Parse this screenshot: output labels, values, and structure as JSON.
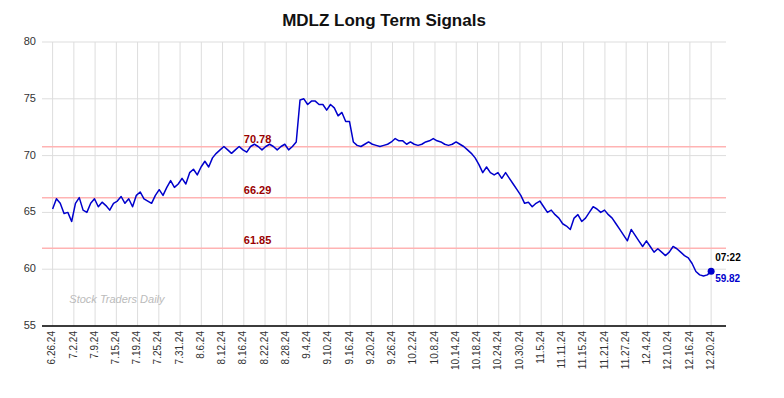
{
  "chart_data": {
    "type": "line",
    "title": "MDLZ Long Term Signals",
    "watermark": "Stock Traders Daily",
    "xlim": [
      -0.5,
      31.7
    ],
    "xticks": [
      {
        "value": 0,
        "label": "6.26.24"
      },
      {
        "value": 1,
        "label": "7.2.24"
      },
      {
        "value": 2,
        "label": "7.9.24"
      },
      {
        "value": 3,
        "label": "7.15.24"
      },
      {
        "value": 4,
        "label": "7.19.24"
      },
      {
        "value": 5,
        "label": "7.25.24"
      },
      {
        "value": 6,
        "label": "7.31.24"
      },
      {
        "value": 7,
        "label": "8.6.24"
      },
      {
        "value": 8,
        "label": "8.12.24"
      },
      {
        "value": 9,
        "label": "8.16.24"
      },
      {
        "value": 10,
        "label": "8.22.24"
      },
      {
        "value": 11,
        "label": "8.28.24"
      },
      {
        "value": 12,
        "label": "9.4.24"
      },
      {
        "value": 13,
        "label": "9.10.24"
      },
      {
        "value": 14,
        "label": "9.16.24"
      },
      {
        "value": 15,
        "label": "9.20.24"
      },
      {
        "value": 16,
        "label": "9.26.24"
      },
      {
        "value": 17,
        "label": "10.2.24"
      },
      {
        "value": 18,
        "label": "10.8.24"
      },
      {
        "value": 19,
        "label": "10.14.24"
      },
      {
        "value": 20,
        "label": "10.18.24"
      },
      {
        "value": 21,
        "label": "10.24.24"
      },
      {
        "value": 22,
        "label": "10.30.24"
      },
      {
        "value": 23,
        "label": "11.5.24"
      },
      {
        "value": 24,
        "label": "11.11.24"
      },
      {
        "value": 25,
        "label": "11.15.24"
      },
      {
        "value": 26,
        "label": "11.21.24"
      },
      {
        "value": 27,
        "label": "11.27.24"
      },
      {
        "value": 28,
        "label": "12.4.24"
      },
      {
        "value": 29,
        "label": "12.10.24"
      },
      {
        "value": 30,
        "label": "12.16.24"
      },
      {
        "value": 31,
        "label": "12.20.24"
      }
    ],
    "ylim": [
      55,
      80
    ],
    "yticks": [
      55,
      60,
      65,
      70,
      75,
      80
    ],
    "grid": true,
    "series": [
      {
        "color": "#0000cc",
        "values": [
          65.3,
          66.2,
          65.8,
          64.9,
          65.0,
          64.2,
          65.8,
          66.3,
          65.2,
          65.0,
          65.8,
          66.2,
          65.5,
          65.9,
          65.6,
          65.2,
          65.8,
          66.0,
          66.4,
          65.8,
          66.2,
          65.5,
          66.5,
          66.8,
          66.2,
          66.0,
          65.8,
          66.5,
          67.0,
          66.5,
          67.2,
          67.8,
          67.2,
          67.5,
          68.0,
          67.5,
          68.5,
          68.8,
          68.3,
          69.0,
          69.5,
          69.0,
          69.8,
          70.2,
          70.5,
          70.8,
          70.5,
          70.2,
          70.5,
          70.8,
          70.5,
          70.3,
          70.8,
          71.0,
          70.8,
          70.5,
          70.8,
          71.0,
          70.8,
          70.5,
          70.8,
          71.0,
          70.5,
          70.8,
          71.2,
          74.9,
          75.0,
          74.5,
          74.8,
          74.8,
          74.5,
          74.5,
          74.0,
          74.5,
          74.2,
          73.5,
          73.8,
          73.0,
          73.0,
          71.2,
          70.9,
          70.8,
          71.0,
          71.2,
          71.0,
          70.9,
          70.8,
          70.9,
          71.0,
          71.2,
          71.5,
          71.3,
          71.3,
          71.0,
          71.2,
          71.0,
          70.9,
          71.0,
          71.2,
          71.3,
          71.5,
          71.3,
          71.2,
          71.0,
          70.9,
          71.0,
          71.2,
          71.0,
          70.8,
          70.5,
          70.2,
          69.8,
          69.2,
          68.5,
          69.0,
          68.5,
          68.3,
          68.5,
          68.0,
          68.5,
          68.0,
          67.5,
          67.0,
          66.5,
          65.8,
          65.9,
          65.5,
          65.8,
          66.0,
          65.5,
          65.0,
          65.2,
          64.8,
          64.5,
          64.0,
          63.8,
          63.5,
          64.5,
          64.8,
          64.2,
          64.5,
          65.0,
          65.5,
          65.3,
          65.0,
          65.2,
          64.8,
          64.5,
          64.0,
          63.5,
          63.0,
          62.5,
          63.5,
          63.0,
          62.5,
          62.0,
          62.5,
          62.0,
          61.5,
          61.8,
          61.5,
          61.2,
          61.5,
          62.0,
          61.8,
          61.5,
          61.2,
          61.0,
          60.5,
          59.8,
          59.5,
          59.4,
          59.5,
          59.82
        ]
      }
    ],
    "reference_lines": [
      {
        "value": 70.78,
        "label": "70.78",
        "color": "#ffb3b3"
      },
      {
        "value": 66.29,
        "label": "66.29",
        "color": "#ffb3b3"
      },
      {
        "value": 61.85,
        "label": "61.85",
        "color": "#ffb3b3"
      }
    ],
    "annotations": [
      {
        "text": "07:22"
      },
      {
        "text": "59.82"
      }
    ]
  }
}
